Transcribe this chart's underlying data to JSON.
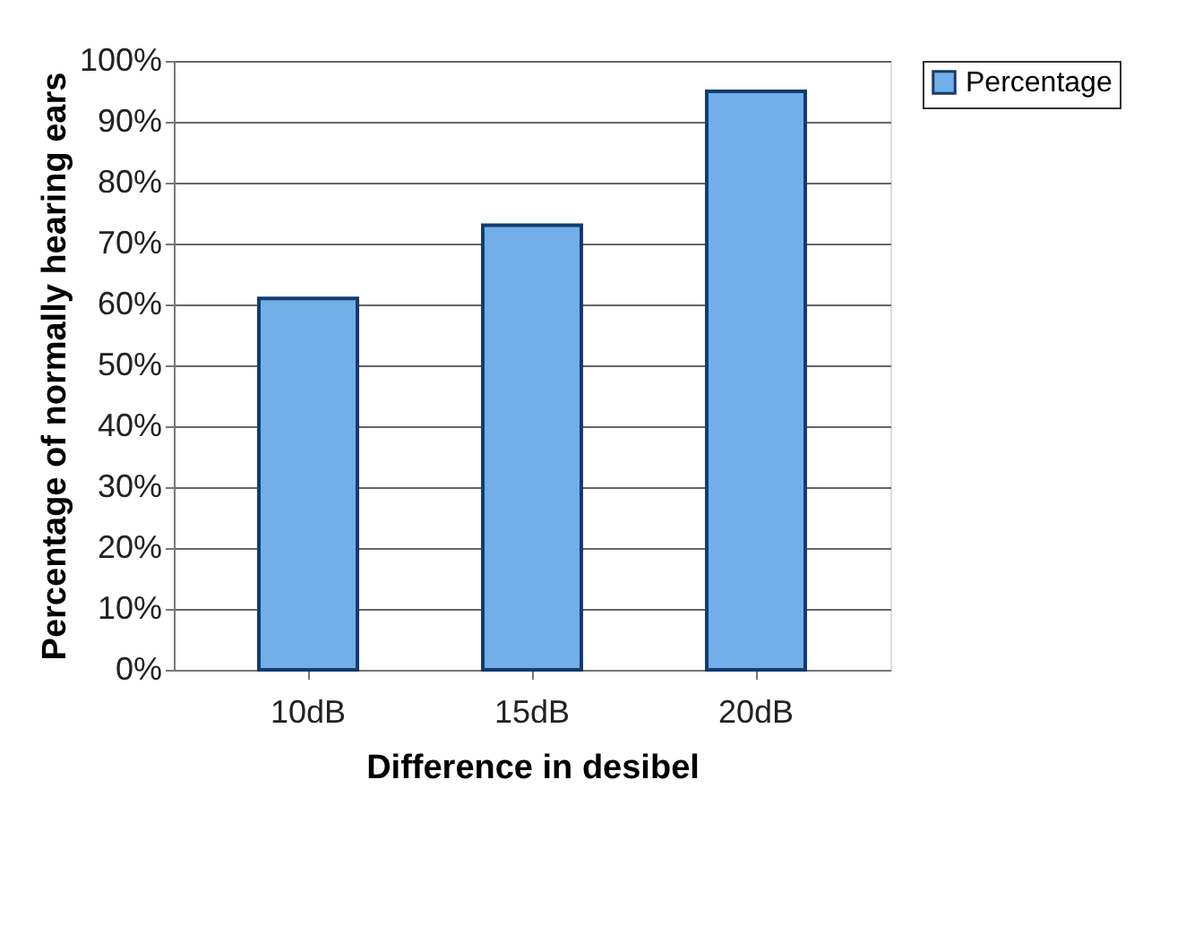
{
  "chart_data": {
    "type": "bar",
    "xlabel": "Difference in desibel",
    "ylabel": "Percentage of normally hearing ears",
    "categories": [
      "10dB",
      "15dB",
      "20dB"
    ],
    "series": [
      {
        "name": "Percentage",
        "color": "#72aee8",
        "values": [
          61,
          73,
          95
        ]
      }
    ],
    "ylim": [
      0,
      100
    ],
    "yticks": [
      {
        "value": 0,
        "label": "0%"
      },
      {
        "value": 10,
        "label": "10%"
      },
      {
        "value": 20,
        "label": "20%"
      },
      {
        "value": 30,
        "label": "30%"
      },
      {
        "value": 40,
        "label": "40%"
      },
      {
        "value": 50,
        "label": "50%"
      },
      {
        "value": 60,
        "label": "60%"
      },
      {
        "value": 70,
        "label": "70%"
      },
      {
        "value": 80,
        "label": "80%"
      },
      {
        "value": 90,
        "label": "90%"
      },
      {
        "value": 100,
        "label": "100%"
      }
    ],
    "grid": "y",
    "legend": "top right"
  }
}
